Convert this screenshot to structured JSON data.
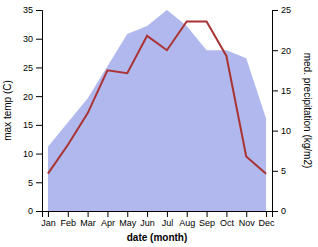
{
  "chart_data": {
    "type": "line",
    "xlabel": "date (month)",
    "ylabel": "max temp (C)",
    "y2label": "med. precipitation (kg/m2)",
    "categories": [
      "Jan",
      "Feb",
      "Mar",
      "Apr",
      "May",
      "Jun",
      "Jul",
      "Aug",
      "Sep",
      "Oct",
      "Nov",
      "Dec"
    ],
    "series": [
      {
        "type": "area",
        "axis": "y2",
        "color": "#b0b8ee",
        "values": [
          8,
          11,
          14,
          18,
          22,
          23,
          25,
          23,
          20,
          20,
          19,
          11.5
        ]
      },
      {
        "type": "line",
        "color": "#aa3333",
        "values": [
          6.5,
          11.5,
          17.0,
          24.5,
          24.0,
          30.5,
          28.0,
          33.0,
          33.0,
          27.0,
          9.5,
          6.5
        ]
      }
    ],
    "ylim": [
      0,
      35
    ],
    "yticks": [
      0,
      5,
      10,
      15,
      20,
      25,
      30,
      35
    ],
    "y2lim": [
      0,
      25
    ],
    "y2ticks": [
      0,
      5,
      10,
      15,
      20,
      25
    ],
    "grid": false
  }
}
